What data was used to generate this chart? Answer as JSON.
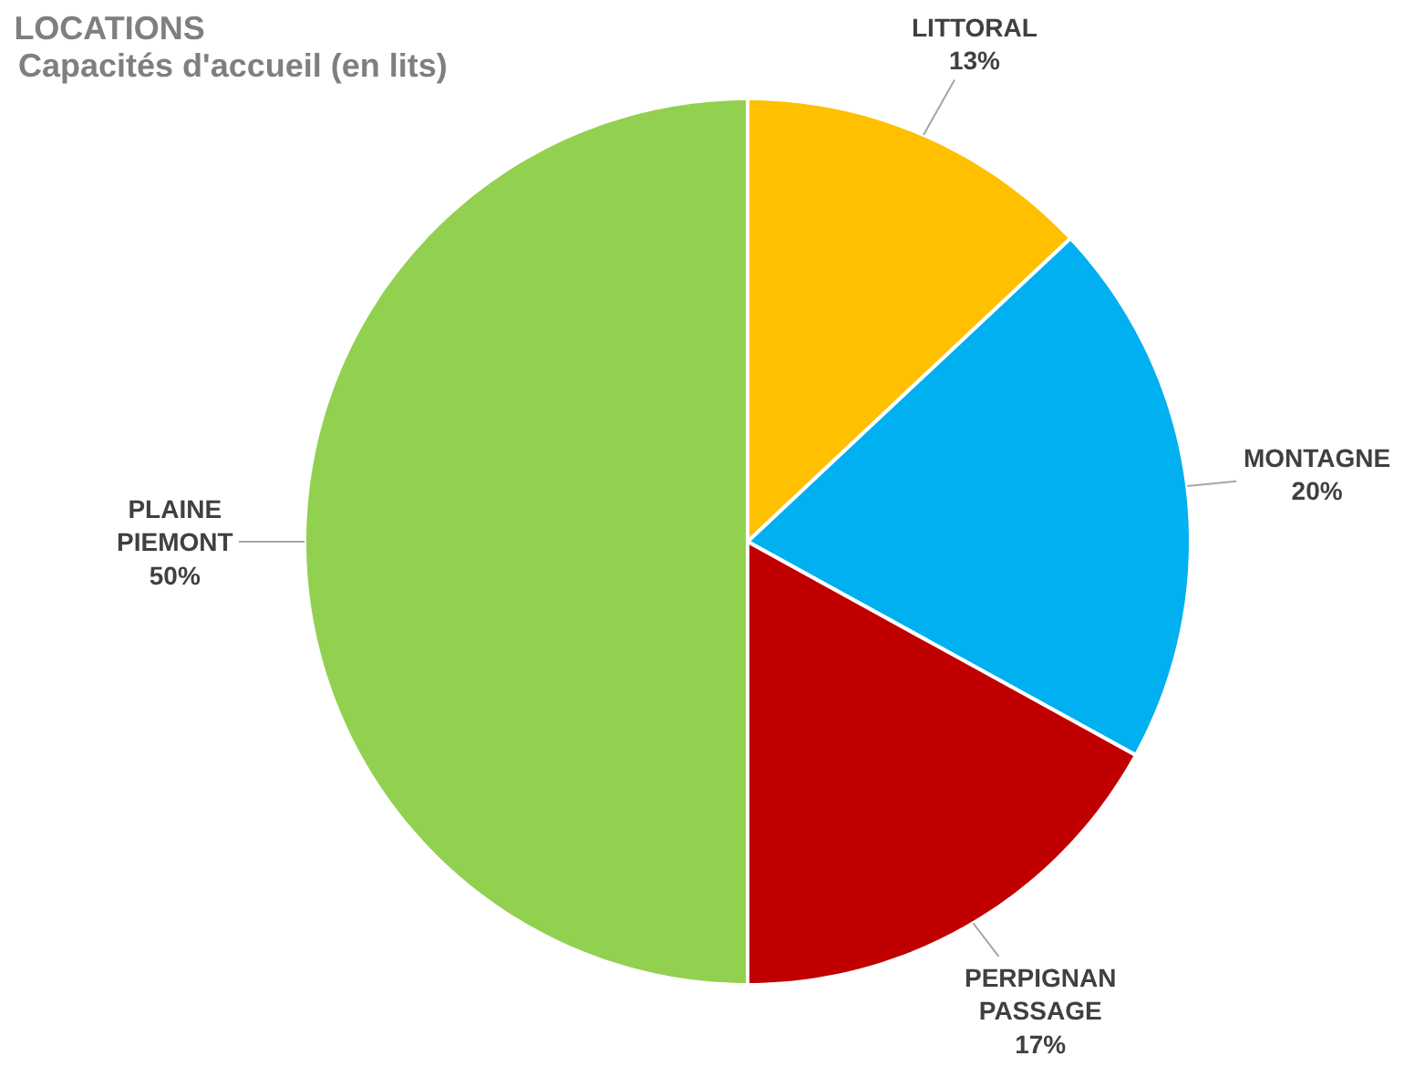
{
  "chart_data": {
    "type": "pie",
    "title": "LOCATIONS",
    "subtitle": "Capacités d'accueil (en lits)",
    "categories": [
      "LITTORAL",
      "MONTAGNE",
      "PERPIGNAN PASSAGE",
      "PLAINE PIEMONT"
    ],
    "values": [
      13,
      20,
      17,
      50
    ],
    "colors": [
      "#ffc000",
      "#00b0f0",
      "#c00000",
      "#92d050"
    ],
    "value_labels": [
      "13%",
      "20%",
      "17%",
      "50%"
    ]
  }
}
